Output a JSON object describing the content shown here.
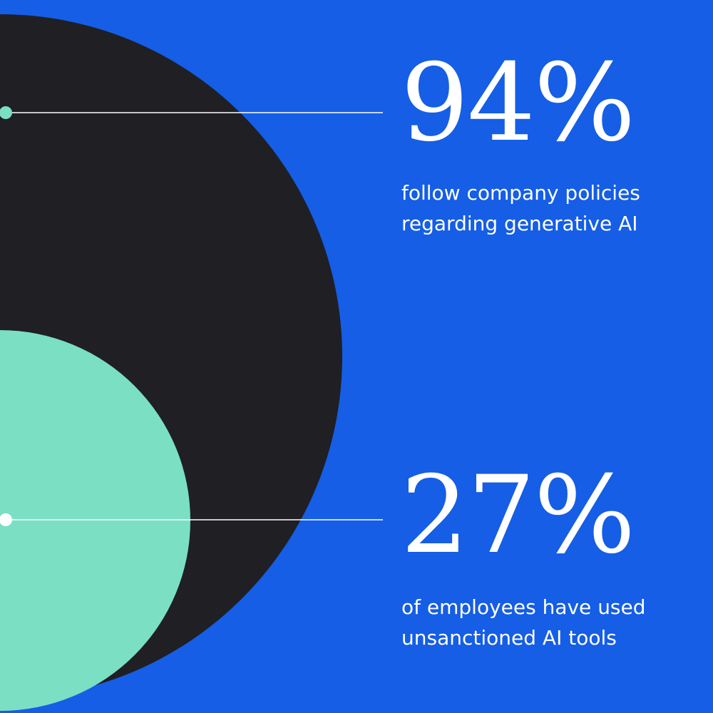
{
  "colors": {
    "background": "#155ee5",
    "outer_circle": "#1f1f24",
    "inner_circle": "#7bdfc3",
    "text": "#ffffff",
    "line": "#ffffff"
  },
  "chart_data": {
    "type": "area",
    "title": "",
    "series": [
      {
        "value": 94,
        "value_label": "94%",
        "description": [
          "follow company policies",
          "regarding generative AI"
        ],
        "circle_color": "#1f1f24",
        "marker_color": "#7bdfc3"
      },
      {
        "value": 27,
        "value_label": "27%",
        "description": [
          "of employees have used",
          "unsanctioned AI tools"
        ],
        "circle_color": "#7bdfc3",
        "marker_color": "#ffffff"
      }
    ]
  }
}
